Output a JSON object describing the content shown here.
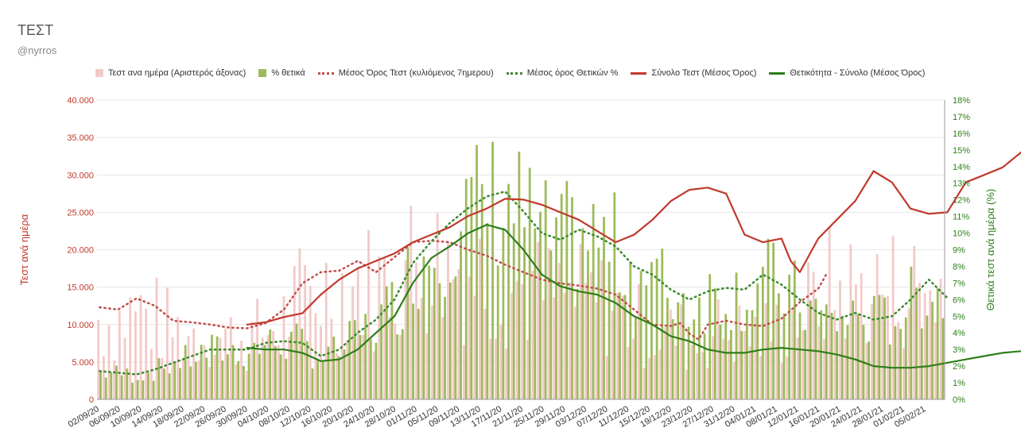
{
  "title": "ΤΕΣΤ",
  "subtitle": "@nyrros",
  "colors": {
    "tests_bar": "#f2c9c9",
    "positive_bar": "#9dbb5a",
    "tests_avg": "#c0504d",
    "positive_avg": "#3c8a2e",
    "total_tests": "#c0392b",
    "total_positive": "#2e7d1a",
    "left_axis": "#c0392b",
    "right_axis": "#2e7d1a",
    "grid": "#e6e6e6"
  },
  "legend": [
    {
      "label": "Τεστ ανα ημέρα (Αριστερός άξονας)",
      "kind": "box",
      "color_key": "tests_bar"
    },
    {
      "label": "% θετικά",
      "kind": "box",
      "color_key": "positive_bar"
    },
    {
      "label": "Μέσος Όρος Τεστ (κυλιόμενος 7ημερου)",
      "kind": "dotted",
      "color_key": "tests_avg"
    },
    {
      "label": "Μέσος όρος Θετικών %",
      "kind": "dotted",
      "color_key": "positive_avg"
    },
    {
      "label": "Σύνολο Τεστ (Μέσος Όρος)",
      "kind": "solid",
      "color_key": "total_tests"
    },
    {
      "label": "Θετικότητα - Σύνολο (Μέσος Όρος)",
      "kind": "solid",
      "color_key": "total_positive"
    }
  ],
  "chart_data": {
    "type": "bar",
    "y_left_label": "Τεστ ανά ημέρα",
    "y_right_label": "Θετικά τεστ ανά ημέρα (%)",
    "y_left_range": [
      0,
      40000
    ],
    "y_right_range": [
      0,
      18
    ],
    "y_left_ticks": [
      "0",
      "5.000",
      "10.000",
      "15.000",
      "20.000",
      "25.000",
      "30.000",
      "35.000",
      "40.000"
    ],
    "y_right_ticks": [
      "0%",
      "1%",
      "2%",
      "3%",
      "4%",
      "5%",
      "6%",
      "7%",
      "8%",
      "9%",
      "10%",
      "11%",
      "12%",
      "13%",
      "14%",
      "15%",
      "16%",
      "17%",
      "18%"
    ],
    "x_start": "02/09/20",
    "x_labels": [
      "02/09/20",
      "06/09/20",
      "10/09/20",
      "14/09/20",
      "18/09/20",
      "22/09/20",
      "26/09/20",
      "30/09/20",
      "04/10/20",
      "08/10/20",
      "12/10/20",
      "16/10/20",
      "20/10/20",
      "24/10/20",
      "28/10/20",
      "01/11/20",
      "05/11/20",
      "09/11/20",
      "13/11/20",
      "17/11/20",
      "21/11/20",
      "25/11/20",
      "29/11/20",
      "03/12/20",
      "07/12/20",
      "11/12/20",
      "15/12/20",
      "19/12/20",
      "23/12/20",
      "27/12/20",
      "31/12/20",
      "04/01/21",
      "08/01/21",
      "12/01/21",
      "16/01/21",
      "20/01/21",
      "24/01/21",
      "28/01/21",
      "01/02/21",
      "05/02/21"
    ],
    "grid": true,
    "legend_position": "top",
    "series": [
      {
        "name": "Μέσος Όρος Τεστ (κυλιόμενος 7ημερου)",
        "axis": "left",
        "style": "dotted",
        "points": [
          [
            0,
            12300
          ],
          [
            4,
            12000
          ],
          [
            8,
            13500
          ],
          [
            12,
            12500
          ],
          [
            16,
            10500
          ],
          [
            20,
            10300
          ],
          [
            24,
            10000
          ],
          [
            28,
            9600
          ],
          [
            32,
            9500
          ],
          [
            36,
            10200
          ],
          [
            40,
            12000
          ],
          [
            44,
            15500
          ],
          [
            48,
            17000
          ],
          [
            52,
            17200
          ],
          [
            56,
            18500
          ],
          [
            60,
            17000
          ],
          [
            64,
            19000
          ],
          [
            68,
            21000
          ],
          [
            72,
            21200
          ],
          [
            76,
            21000
          ],
          [
            80,
            20000
          ],
          [
            84,
            19200
          ],
          [
            88,
            18000
          ],
          [
            92,
            17000
          ],
          [
            96,
            16000
          ],
          [
            100,
            15500
          ],
          [
            104,
            15200
          ],
          [
            108,
            14800
          ],
          [
            112,
            14000
          ],
          [
            116,
            12000
          ],
          [
            120,
            10000
          ],
          [
            124,
            9800
          ],
          [
            126,
            10200
          ],
          [
            128,
            8800
          ],
          [
            130,
            8000
          ],
          [
            132,
            10000
          ],
          [
            136,
            10500
          ],
          [
            140,
            10000
          ],
          [
            144,
            9800
          ],
          [
            148,
            10800
          ],
          [
            152,
            13000
          ],
          [
            156,
            14800
          ],
          [
            158,
            17000
          ]
        ]
      },
      {
        "name": "Μέσος όρος Θετικών %",
        "axis": "right",
        "style": "dotted",
        "points": [
          [
            0,
            1.7
          ],
          [
            4,
            1.6
          ],
          [
            8,
            1.5
          ],
          [
            12,
            1.8
          ],
          [
            16,
            2.2
          ],
          [
            20,
            2.6
          ],
          [
            24,
            3.0
          ],
          [
            28,
            3.0
          ],
          [
            32,
            3.0
          ],
          [
            36,
            3.4
          ],
          [
            40,
            3.5
          ],
          [
            44,
            3.4
          ],
          [
            48,
            2.6
          ],
          [
            52,
            3.0
          ],
          [
            56,
            4.0
          ],
          [
            60,
            4.8
          ],
          [
            64,
            6.0
          ],
          [
            68,
            8.2
          ],
          [
            72,
            9.5
          ],
          [
            76,
            10.6
          ],
          [
            80,
            11.5
          ],
          [
            84,
            12.2
          ],
          [
            88,
            12.5
          ],
          [
            92,
            11.3
          ],
          [
            96,
            10.0
          ],
          [
            100,
            9.6
          ],
          [
            104,
            10.2
          ],
          [
            108,
            9.8
          ],
          [
            112,
            9.2
          ],
          [
            116,
            8.0
          ],
          [
            120,
            7.5
          ],
          [
            124,
            6.6
          ],
          [
            128,
            6.0
          ],
          [
            132,
            6.5
          ],
          [
            136,
            6.7
          ],
          [
            140,
            6.6
          ],
          [
            144,
            7.5
          ],
          [
            148,
            6.9
          ],
          [
            152,
            6.0
          ],
          [
            156,
            5.2
          ],
          [
            160,
            4.8
          ],
          [
            164,
            5.2
          ],
          [
            168,
            4.8
          ],
          [
            172,
            5.0
          ],
          [
            176,
            6.0
          ],
          [
            180,
            7.2
          ],
          [
            184,
            6.1
          ]
        ]
      },
      {
        "name": "Σύνολο Τεστ (Μέσος Όρος)",
        "axis": "left",
        "style": "solid",
        "points": [
          [
            32,
            10000
          ],
          [
            36,
            10300
          ],
          [
            40,
            11000
          ],
          [
            44,
            11500
          ],
          [
            48,
            14000
          ],
          [
            52,
            16000
          ],
          [
            56,
            17500
          ],
          [
            60,
            18500
          ],
          [
            64,
            19500
          ],
          [
            68,
            21000
          ],
          [
            72,
            22000
          ],
          [
            76,
            23000
          ],
          [
            80,
            24500
          ],
          [
            84,
            25500
          ],
          [
            88,
            26800
          ],
          [
            92,
            26700
          ],
          [
            96,
            26000
          ],
          [
            100,
            25000
          ],
          [
            104,
            24000
          ],
          [
            108,
            22500
          ],
          [
            112,
            21000
          ],
          [
            116,
            22000
          ],
          [
            120,
            24000
          ],
          [
            124,
            26500
          ],
          [
            128,
            28000
          ],
          [
            132,
            28300
          ],
          [
            136,
            27500
          ],
          [
            140,
            22000
          ],
          [
            144,
            21000
          ],
          [
            148,
            21500
          ],
          [
            150,
            18500
          ],
          [
            152,
            17000
          ],
          [
            156,
            21500
          ],
          [
            160,
            24000
          ],
          [
            164,
            26500
          ],
          [
            168,
            30500
          ],
          [
            172,
            29000
          ],
          [
            176,
            25500
          ],
          [
            180,
            24800
          ],
          [
            184,
            25000
          ],
          [
            188,
            29000
          ],
          [
            192,
            30000
          ],
          [
            196,
            31000
          ],
          [
            200,
            33000
          ],
          [
            204,
            36000
          ]
        ]
      },
      {
        "name": "Θετικότητα - Σύνολο (Μέσος Όρος)",
        "axis": "right",
        "style": "solid",
        "points": [
          [
            32,
            3.1
          ],
          [
            36,
            3.0
          ],
          [
            40,
            3.0
          ],
          [
            44,
            2.8
          ],
          [
            48,
            2.3
          ],
          [
            52,
            2.4
          ],
          [
            56,
            3.0
          ],
          [
            60,
            4.0
          ],
          [
            64,
            5.0
          ],
          [
            68,
            7.0
          ],
          [
            72,
            8.5
          ],
          [
            76,
            9.2
          ],
          [
            80,
            10.0
          ],
          [
            84,
            10.5
          ],
          [
            88,
            10.2
          ],
          [
            92,
            9.0
          ],
          [
            96,
            7.5
          ],
          [
            100,
            6.8
          ],
          [
            104,
            6.5
          ],
          [
            108,
            6.3
          ],
          [
            112,
            5.8
          ],
          [
            116,
            5.0
          ],
          [
            120,
            4.5
          ],
          [
            124,
            3.8
          ],
          [
            128,
            3.5
          ],
          [
            132,
            3.0
          ],
          [
            136,
            2.8
          ],
          [
            140,
            2.8
          ],
          [
            144,
            3.0
          ],
          [
            148,
            3.1
          ],
          [
            152,
            3.0
          ],
          [
            156,
            2.9
          ],
          [
            160,
            2.7
          ],
          [
            164,
            2.4
          ],
          [
            168,
            2.0
          ],
          [
            172,
            1.9
          ],
          [
            176,
            1.9
          ],
          [
            180,
            2.0
          ],
          [
            184,
            2.2
          ],
          [
            188,
            2.4
          ],
          [
            192,
            2.6
          ],
          [
            196,
            2.8
          ],
          [
            200,
            2.9
          ],
          [
            204,
            2.8
          ]
        ]
      }
    ]
  }
}
